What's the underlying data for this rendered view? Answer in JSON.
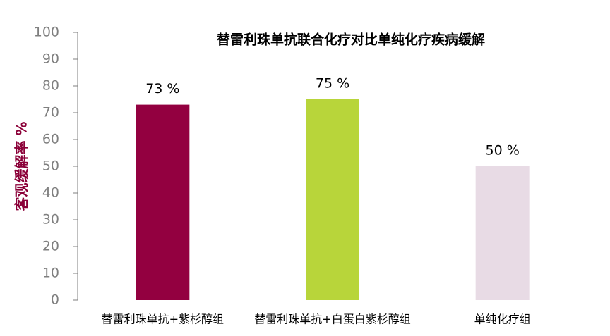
{
  "chart_data": {
    "type": "bar",
    "title": "替雷利珠单抗联合化疗对比单纯化疗疾病缓解",
    "y_label": "客观缓解率 %",
    "categories": [
      "替雷利珠单抗+紫杉醇组",
      "替雷利珠单抗+白蛋白紫杉醇组",
      "单纯化疗组"
    ],
    "values": [
      73,
      75,
      50
    ],
    "value_labels": [
      "73 %",
      "75 %",
      "50 %"
    ],
    "colors": [
      "#930040",
      "#b8d53a",
      "#e8dbe5"
    ],
    "ylim": [
      0,
      100
    ],
    "yticks": [
      0,
      10,
      20,
      30,
      40,
      50,
      60,
      70,
      80,
      90,
      100
    ]
  }
}
